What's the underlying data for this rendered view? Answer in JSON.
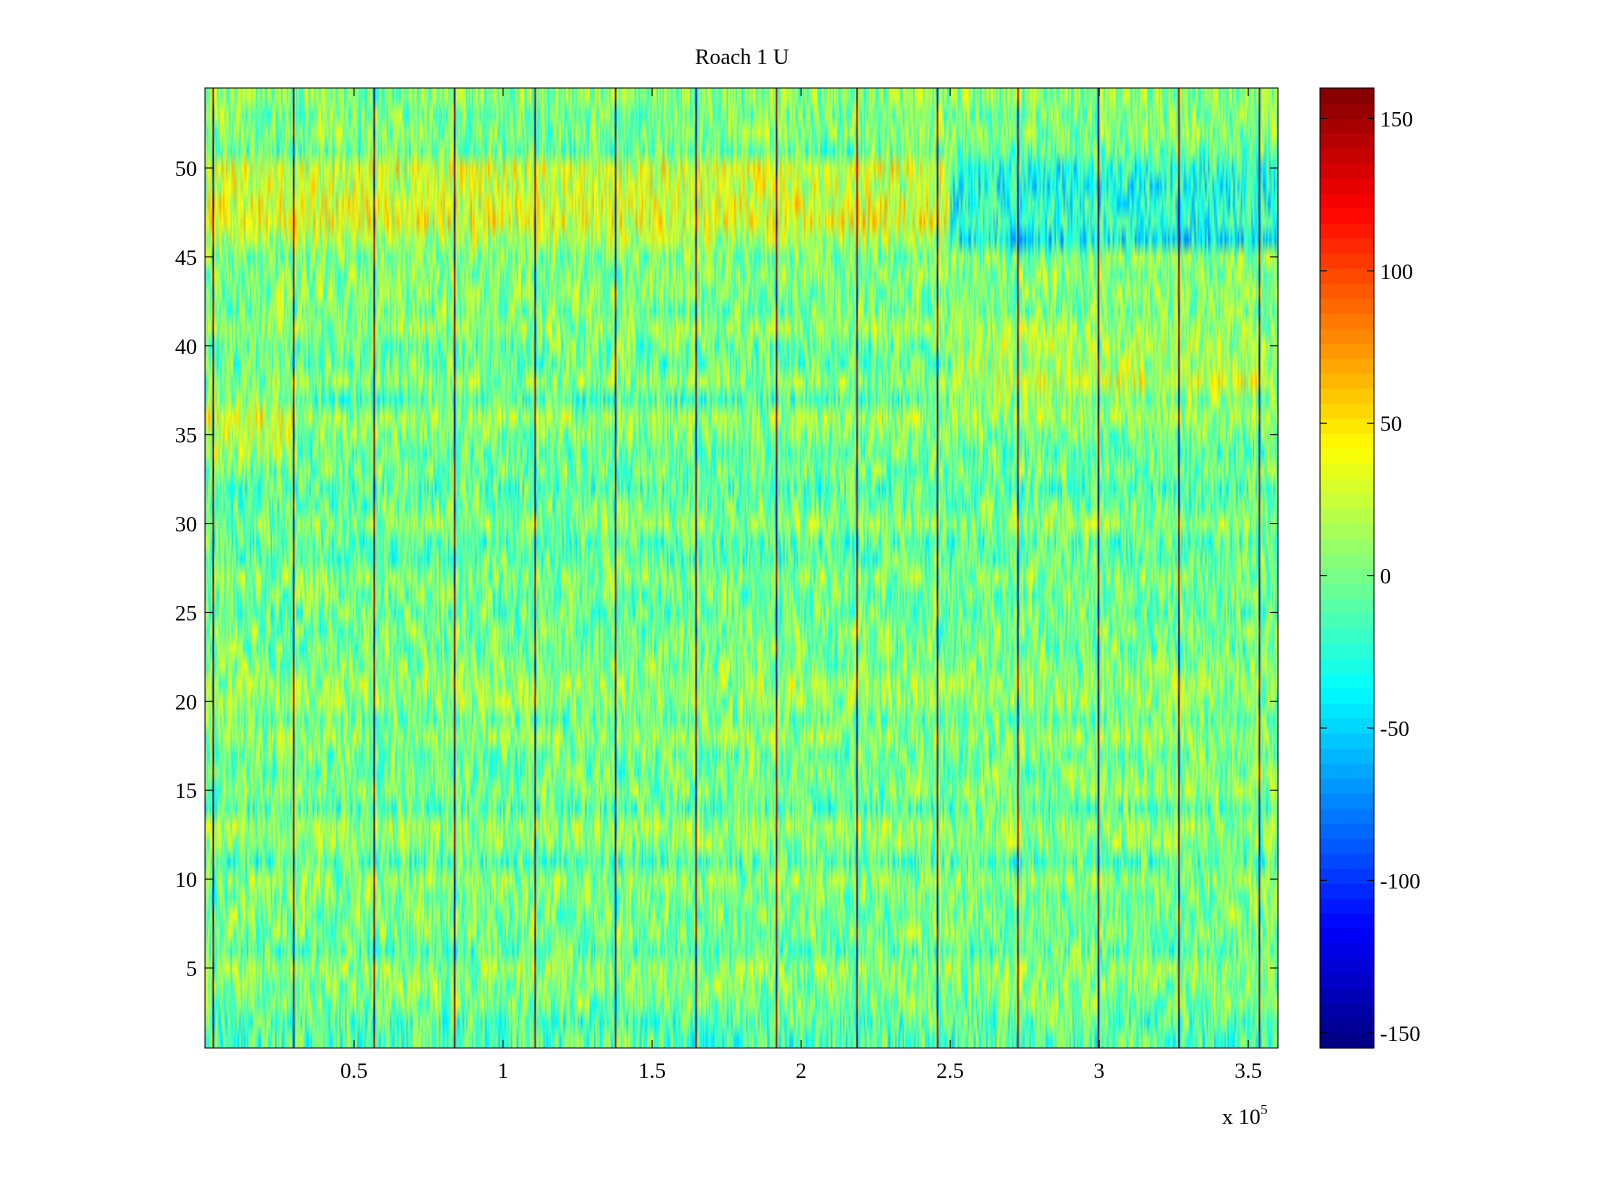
{
  "chart_data": {
    "type": "heatmap",
    "title": "Roach 1 U",
    "xlabel": "",
    "ylabel": "",
    "x_multiplier_label": "x 10",
    "x_multiplier_exponent": "5",
    "xlim": [
      0,
      3.6
    ],
    "ylim": [
      0.5,
      54.5
    ],
    "rows": 54,
    "x_ticks": [
      {
        "value": 0.5,
        "label": "0.5"
      },
      {
        "value": 1.0,
        "label": "1"
      },
      {
        "value": 1.5,
        "label": "1.5"
      },
      {
        "value": 2.0,
        "label": "2"
      },
      {
        "value": 2.5,
        "label": "2.5"
      },
      {
        "value": 3.0,
        "label": "3"
      },
      {
        "value": 3.5,
        "label": "3.5"
      }
    ],
    "y_ticks": [
      {
        "value": 5,
        "label": "5"
      },
      {
        "value": 10,
        "label": "10"
      },
      {
        "value": 15,
        "label": "15"
      },
      {
        "value": 20,
        "label": "20"
      },
      {
        "value": 25,
        "label": "25"
      },
      {
        "value": 30,
        "label": "30"
      },
      {
        "value": 35,
        "label": "35"
      },
      {
        "value": 40,
        "label": "40"
      },
      {
        "value": 45,
        "label": "45"
      },
      {
        "value": 50,
        "label": "50"
      }
    ],
    "colorbar": {
      "min": -155,
      "max": 160,
      "colormap": "jet",
      "ticks": [
        {
          "value": -150,
          "label": "-150"
        },
        {
          "value": -100,
          "label": "-100"
        },
        {
          "value": -50,
          "label": "-50"
        },
        {
          "value": 0,
          "label": "0"
        },
        {
          "value": 50,
          "label": "50"
        },
        {
          "value": 100,
          "label": "100"
        },
        {
          "value": 150,
          "label": "150"
        }
      ]
    },
    "typical_range": [
      -40,
      40
    ],
    "spike_columns_x": [
      0.027,
      0.297,
      0.567,
      0.837,
      1.107,
      1.377,
      1.647,
      1.917,
      2.187,
      2.457,
      2.727,
      2.997,
      3.267,
      3.537
    ],
    "spike_values": [
      150,
      -150
    ],
    "row_bias_notes": [
      {
        "rows": [
          46,
          50
        ],
        "x_range": [
          0,
          2.5
        ],
        "bias": 25,
        "description": "warm (yellow/orange) band"
      },
      {
        "rows": [
          46,
          50
        ],
        "x_range": [
          2.5,
          3.6
        ],
        "bias": -30,
        "description": "cool (cyan/blue) band"
      },
      {
        "rows": [
          37,
          40
        ],
        "x_range": [
          2.5,
          3.6
        ],
        "bias": 20,
        "description": "warm band"
      },
      {
        "rows": [
          34,
          37
        ],
        "x_range": [
          0,
          0.3
        ],
        "bias": 20,
        "description": "warm band"
      }
    ]
  }
}
